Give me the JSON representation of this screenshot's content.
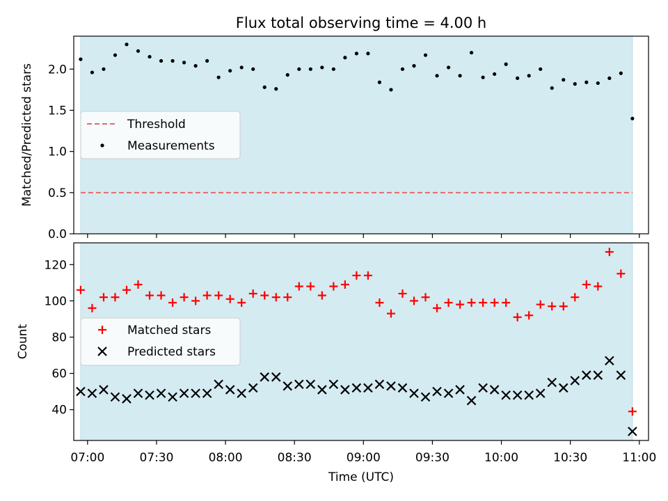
{
  "chart_data": [
    {
      "type": "scatter",
      "title": "Flux total observing time = 4.00 h",
      "xlabel": "",
      "ylabel": "Matched/Predicted stars",
      "xlim": [
        "06:54",
        "11:04"
      ],
      "ylim": [
        0,
        2.4
      ],
      "yticks": [
        0.0,
        0.5,
        1.0,
        1.5,
        2.0
      ],
      "ytick_labels": [
        "0.0",
        "0.5",
        "1.0",
        "1.5",
        "2.0"
      ],
      "shaded_span": [
        "06:57",
        "10:57"
      ],
      "legend_position": "center-left",
      "legend": [
        "Threshold",
        "Measurements"
      ],
      "threshold": {
        "name": "Threshold",
        "value": 0.5,
        "x_range": [
          "06:57",
          "10:57"
        ],
        "color": "#e8676b"
      },
      "series": [
        {
          "name": "Measurements",
          "marker": "dot",
          "color": "#000000",
          "x": [
            "06:57",
            "07:02",
            "07:07",
            "07:12",
            "07:17",
            "07:22",
            "07:27",
            "07:32",
            "07:37",
            "07:42",
            "07:47",
            "07:52",
            "07:57",
            "08:02",
            "08:07",
            "08:12",
            "08:17",
            "08:22",
            "08:27",
            "08:32",
            "08:37",
            "08:42",
            "08:47",
            "08:52",
            "08:57",
            "09:02",
            "09:07",
            "09:12",
            "09:17",
            "09:22",
            "09:27",
            "09:32",
            "09:37",
            "09:42",
            "09:47",
            "09:52",
            "09:57",
            "10:02",
            "10:07",
            "10:12",
            "10:17",
            "10:22",
            "10:27",
            "10:32",
            "10:37",
            "10:42",
            "10:47",
            "10:52",
            "10:57"
          ],
          "y": [
            2.12,
            1.96,
            2.0,
            2.17,
            2.3,
            2.22,
            2.15,
            2.1,
            2.1,
            2.08,
            2.04,
            2.1,
            1.9,
            1.98,
            2.02,
            2.0,
            1.78,
            1.76,
            1.93,
            2.0,
            2.0,
            2.02,
            2.0,
            2.14,
            2.19,
            2.19,
            1.84,
            1.75,
            2.0,
            2.04,
            2.17,
            1.92,
            2.02,
            1.92,
            2.2,
            1.9,
            1.94,
            2.06,
            1.89,
            1.92,
            2.0,
            1.77,
            1.87,
            1.82,
            1.84,
            1.83,
            1.89,
            1.95,
            1.4
          ]
        }
      ]
    },
    {
      "type": "scatter",
      "title": "",
      "xlabel": "Time (UTC)",
      "ylabel": "Count",
      "xlim": [
        "06:54",
        "11:04"
      ],
      "ylim": [
        23,
        132
      ],
      "xticks": [
        "07:00",
        "07:30",
        "08:00",
        "08:30",
        "09:00",
        "09:30",
        "10:00",
        "10:30",
        "11:00"
      ],
      "yticks": [
        40,
        60,
        80,
        100,
        120
      ],
      "ytick_labels": [
        "40",
        "60",
        "80",
        "100",
        "120"
      ],
      "shaded_span": [
        "06:57",
        "10:57"
      ],
      "legend_position": "center-left",
      "legend": [
        "Matched stars",
        "Predicted stars"
      ],
      "series": [
        {
          "name": "Matched stars",
          "marker": "plus",
          "color": "#ff0000",
          "x": [
            "06:57",
            "07:02",
            "07:07",
            "07:12",
            "07:17",
            "07:22",
            "07:27",
            "07:32",
            "07:37",
            "07:42",
            "07:47",
            "07:52",
            "07:57",
            "08:02",
            "08:07",
            "08:12",
            "08:17",
            "08:22",
            "08:27",
            "08:32",
            "08:37",
            "08:42",
            "08:47",
            "08:52",
            "08:57",
            "09:02",
            "09:07",
            "09:12",
            "09:17",
            "09:22",
            "09:27",
            "09:32",
            "09:37",
            "09:42",
            "09:47",
            "09:52",
            "09:57",
            "10:02",
            "10:07",
            "10:12",
            "10:17",
            "10:22",
            "10:27",
            "10:32",
            "10:37",
            "10:42",
            "10:47",
            "10:52",
            "10:57"
          ],
          "y": [
            106,
            96,
            102,
            102,
            106,
            109,
            103,
            103,
            99,
            102,
            100,
            103,
            103,
            101,
            99,
            104,
            103,
            102,
            102,
            108,
            108,
            103,
            108,
            109,
            114,
            114,
            99,
            93,
            104,
            100,
            102,
            96,
            99,
            98,
            99,
            99,
            99,
            99,
            91,
            92,
            98,
            97,
            97,
            102,
            109,
            108,
            127,
            115,
            39
          ]
        },
        {
          "name": "Predicted stars",
          "marker": "x",
          "color": "#000000",
          "x": [
            "06:57",
            "07:02",
            "07:07",
            "07:12",
            "07:17",
            "07:22",
            "07:27",
            "07:32",
            "07:37",
            "07:42",
            "07:47",
            "07:52",
            "07:57",
            "08:02",
            "08:07",
            "08:12",
            "08:17",
            "08:22",
            "08:27",
            "08:32",
            "08:37",
            "08:42",
            "08:47",
            "08:52",
            "08:57",
            "09:02",
            "09:07",
            "09:12",
            "09:17",
            "09:22",
            "09:27",
            "09:32",
            "09:37",
            "09:42",
            "09:47",
            "09:52",
            "09:57",
            "10:02",
            "10:07",
            "10:12",
            "10:17",
            "10:22",
            "10:27",
            "10:32",
            "10:37",
            "10:42",
            "10:47",
            "10:52",
            "10:57"
          ],
          "y": [
            50,
            49,
            51,
            47,
            46,
            49,
            48,
            49,
            47,
            49,
            49,
            49,
            54,
            51,
            49,
            52,
            58,
            58,
            53,
            54,
            54,
            51,
            54,
            51,
            52,
            52,
            54,
            53,
            52,
            49,
            47,
            50,
            49,
            51,
            45,
            52,
            51,
            48,
            48,
            48,
            49,
            55,
            52,
            56,
            59,
            59,
            67,
            59,
            28
          ]
        }
      ]
    }
  ],
  "colors": {
    "span": "#d4ebf1",
    "span_edge": "#bcdde6"
  }
}
